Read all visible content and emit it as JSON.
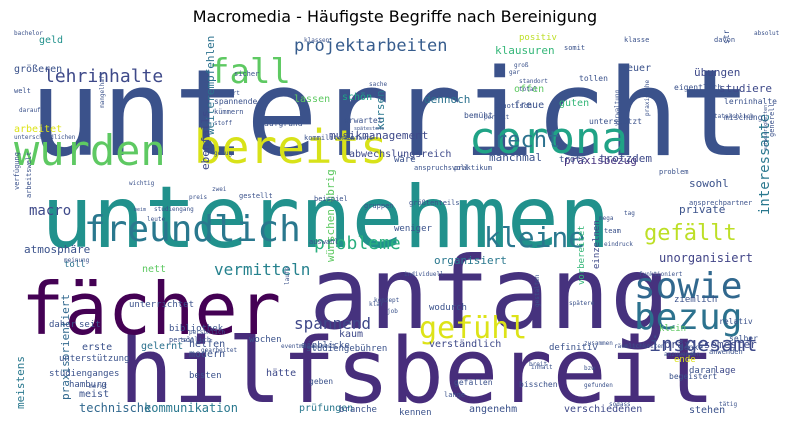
{
  "chart_data": {
    "type": "wordcloud",
    "title": "Macromedia - Häufigste Begriffe nach Bereinigung",
    "words": [
      {
        "text": "unterricht",
        "color": "#3b528b"
      },
      {
        "text": "unternehmen",
        "color": "#21918c"
      },
      {
        "text": "anfang",
        "color": "#46327e"
      },
      {
        "text": "hilfsbereit",
        "color": "#472d7b"
      },
      {
        "text": "fächer",
        "color": "#440154"
      },
      {
        "text": "bereits",
        "color": "#d8e219"
      },
      {
        "text": "wurden",
        "color": "#5ec962"
      },
      {
        "text": "corona",
        "color": "#20a386"
      },
      {
        "text": "freundlich",
        "color": "#2a788e"
      },
      {
        "text": "fall",
        "color": "#5ec962"
      },
      {
        "text": "sowie",
        "color": "#31688e"
      },
      {
        "text": "bezug",
        "color": "#2c728e"
      },
      {
        "text": "gefühl",
        "color": "#dde318"
      },
      {
        "text": "kleine",
        "color": "#2a788e"
      },
      {
        "text": "gefällt",
        "color": "#bddf26"
      },
      {
        "text": "lehrinhalte",
        "color": "#3e4989"
      },
      {
        "text": "projektarbeiten",
        "color": "#365c8d"
      },
      {
        "text": "recht",
        "color": "#2c728e"
      },
      {
        "text": "insgesamt",
        "color": "#3e4989"
      },
      {
        "text": "probleme",
        "color": "#29af7f"
      },
      {
        "text": "vermitteln",
        "color": "#26828e"
      },
      {
        "text": "spannend",
        "color": "#3f4889"
      },
      {
        "text": "interessante",
        "color": "#2a788e"
      },
      {
        "text": "technische",
        "color": "#31688e"
      },
      {
        "text": "kommunikation",
        "color": "#2a788e"
      },
      {
        "text": "macro",
        "color": "#3e4989"
      },
      {
        "text": "unorganisiert",
        "color": "#414487"
      },
      {
        "text": "musikmanagement",
        "color": "#3e4989"
      },
      {
        "text": "manchmal",
        "color": "#3b528b"
      },
      {
        "text": "praxisbezug",
        "color": "#46337f"
      },
      {
        "text": "trotzdem",
        "color": "#3e4989"
      },
      {
        "text": "praxissemester",
        "color": "#3e4989"
      },
      {
        "text": "dennoch",
        "color": "#2c728e"
      },
      {
        "text": "kursen",
        "color": "#2a788e"
      },
      {
        "text": "klausuren",
        "color": "#35b779"
      },
      {
        "text": "übungen",
        "color": "#3e4989"
      },
      {
        "text": "studiere",
        "color": "#3e4989"
      },
      {
        "text": "sowohl",
        "color": "#3b528b"
      },
      {
        "text": "privatе",
        "color": "#3b528b"
      },
      {
        "text": "organisiert",
        "color": "#2a788e"
      },
      {
        "text": "atmosphäre",
        "color": "#3b528b"
      },
      {
        "text": "meistens",
        "color": "#2a788e"
      },
      {
        "text": "praxisorientiert",
        "color": "#31688e"
      },
      {
        "text": "weiterempfehlen",
        "color": "#2c728e"
      },
      {
        "text": "prüfungen",
        "color": "#2a788e"
      },
      {
        "text": "angenehm",
        "color": "#3b528b"
      },
      {
        "text": "verschiedenen",
        "color": "#3e4989"
      },
      {
        "text": "stehen",
        "color": "#3b528b"
      },
      {
        "text": "verständlich",
        "color": "#3e4989"
      },
      {
        "text": "abwechslungsreich",
        "color": "#3e4989"
      },
      {
        "text": "teuer",
        "color": "#3b528b"
      },
      {
        "text": "positiv",
        "color": "#bddf26"
      },
      {
        "text": "ebenfalls",
        "color": "#3e4989"
      },
      {
        "text": "wünschen übrig",
        "color": "#5ec962"
      },
      {
        "text": "arbeitet",
        "color": "#dde318"
      },
      {
        "text": "gelernt",
        "color": "#2c728e"
      },
      {
        "text": "erste",
        "color": "#3b528b"
      },
      {
        "text": "kaum",
        "color": "#3e4989"
      },
      {
        "text": "meist",
        "color": "#3b528b"
      },
      {
        "text": "hätte",
        "color": "#3e4989"
      },
      {
        "text": "größeren",
        "color": "#3b528b"
      },
      {
        "text": "geld",
        "color": "#21918c"
      },
      {
        "text": "schön",
        "color": "#20a386"
      },
      {
        "text": "offen",
        "color": "#5ec962"
      },
      {
        "text": "freue",
        "color": "#3b528b"
      },
      {
        "text": "guten",
        "color": "#35b779"
      },
      {
        "text": "lassen",
        "color": "#5ec962"
      },
      {
        "text": "wäre",
        "color": "#3b528b"
      },
      {
        "text": "nett",
        "color": "#5ec962"
      },
      {
        "text": "toll",
        "color": "#2c728e"
      },
      {
        "text": "helfen",
        "color": "#3b528b"
      },
      {
        "text": "modern",
        "color": "#3b528b"
      },
      {
        "text": "besten",
        "color": "#3b528b"
      },
      {
        "text": "wochen",
        "color": "#3b528b"
      },
      {
        "text": "kennen",
        "color": "#3b528b"
      },
      {
        "text": "klein",
        "color": "#5ec962"
      },
      {
        "text": "ziemlich",
        "color": "#3b528b"
      },
      {
        "text": "ende",
        "color": "#dde318"
      },
      {
        "text": "daran",
        "color": "#3b528b"
      },
      {
        "text": "lage",
        "color": "#3e4989"
      },
      {
        "text": "einzelnen",
        "color": "#3e4989"
      },
      {
        "text": "vorbereitet",
        "color": "#35b779"
      },
      {
        "text": "definitiv",
        "color": "#3b528b"
      },
      {
        "text": "trotz",
        "color": "#3b528b"
      },
      {
        "text": "branche",
        "color": "#3b528b"
      },
      {
        "text": "einblicke",
        "color": "#3b528b"
      },
      {
        "text": "bibliothek",
        "color": "#3b528b"
      },
      {
        "text": "studiengebühren",
        "color": "#3b528b"
      },
      {
        "text": "unterrichtet",
        "color": "#3b528b"
      },
      {
        "text": "wodurch",
        "color": "#3b528b"
      },
      {
        "text": "daher",
        "color": "#3b528b"
      },
      {
        "text": "seit",
        "color": "#3b528b"
      },
      {
        "text": "unterstützung",
        "color": "#3b528b"
      },
      {
        "text": "weniger",
        "color": "#3b528b"
      },
      {
        "text": "welt",
        "color": "#3b528b"
      },
      {
        "text": "leute",
        "color": "#3b528b"
      },
      {
        "text": "studienganges",
        "color": "#3b528b"
      },
      {
        "text": "hamburg",
        "color": "#3b528b"
      },
      {
        "text": "geben",
        "color": "#3b528b"
      },
      {
        "text": "lange",
        "color": "#3b528b"
      },
      {
        "text": "bisschen",
        "color": "#3b528b"
      },
      {
        "text": "gefallen",
        "color": "#3b528b"
      },
      {
        "text": "begeistert",
        "color": "#3b528b"
      },
      {
        "text": "denke",
        "color": "#3b528b"
      },
      {
        "text": "selber",
        "color": "#3b528b"
      },
      {
        "text": "relativ",
        "color": "#3b528b"
      },
      {
        "text": "anwenden",
        "color": "#3b528b"
      },
      {
        "text": "eigentlich",
        "color": "#3b528b"
      },
      {
        "text": "lerninhalte",
        "color": "#3b528b"
      },
      {
        "text": "mischung",
        "color": "#3b528b"
      },
      {
        "text": "tollen",
        "color": "#3b528b"
      },
      {
        "text": "chaotisch",
        "color": "#3b528b"
      },
      {
        "text": "bemüht",
        "color": "#3b528b"
      },
      {
        "text": "spannende",
        "color": "#3b528b"
      },
      {
        "text": "kümmern",
        "color": "#3b528b"
      },
      {
        "text": "sicher",
        "color": "#3b528b"
      },
      {
        "text": "erwartet",
        "color": "#3b528b"
      },
      {
        "text": "aufgrund",
        "color": "#3b528b"
      },
      {
        "text": "unterstützt",
        "color": "#3b528b"
      },
      {
        "text": "strukturiert",
        "color": "#3b528b"
      },
      {
        "text": "davon",
        "color": "#3b528b"
      },
      {
        "text": "klasse",
        "color": "#3b528b"
      },
      {
        "text": "somit",
        "color": "#3b528b"
      },
      {
        "text": "problem",
        "color": "#3b528b"
      },
      {
        "text": "ansprechpartner",
        "color": "#3b528b"
      },
      {
        "text": "generell",
        "color": "#3b528b"
      },
      {
        "text": "kommilitonen",
        "color": "#3b528b"
      },
      {
        "text": "anspruchsvoll",
        "color": "#3b528b"
      },
      {
        "text": "praktikum",
        "color": "#3b528b"
      },
      {
        "text": "gruppen",
        "color": "#3b528b"
      },
      {
        "text": "größtenteils",
        "color": "#3b528b"
      },
      {
        "text": "gestellt",
        "color": "#3b528b"
      },
      {
        "text": "beispiel",
        "color": "#3b528b"
      },
      {
        "text": "verfügung",
        "color": "#3b528b"
      },
      {
        "text": "arbeitswelt",
        "color": "#3b528b"
      },
      {
        "text": "meinung",
        "color": "#3b528b"
      },
      {
        "text": "auswahl",
        "color": "#3b528b"
      },
      {
        "text": "team",
        "color": "#3b528b"
      },
      {
        "text": "tag",
        "color": "#3b528b"
      },
      {
        "text": "mega",
        "color": "#3b528b"
      },
      {
        "text": "eindruck",
        "color": "#3b528b"
      },
      {
        "text": "funktioniert",
        "color": "#3b528b"
      },
      {
        "text": "individuell",
        "color": "#3b528b"
      },
      {
        "text": "laufe",
        "color": "#3b528b"
      },
      {
        "text": "konzept",
        "color": "#3b528b"
      },
      {
        "text": "klar",
        "color": "#3b528b"
      },
      {
        "text": "job",
        "color": "#3b528b"
      },
      {
        "text": "gestalten",
        "color": "#3b528b"
      },
      {
        "text": "spätere",
        "color": "#3b528b"
      },
      {
        "text": "teil",
        "color": "#3b528b"
      },
      {
        "text": "eventmanagement",
        "color": "#3b528b"
      },
      {
        "text": "persönlich",
        "color": "#3b528b"
      },
      {
        "text": "gearbeitet",
        "color": "#3b528b"
      },
      {
        "text": "merkt",
        "color": "#3b528b"
      },
      {
        "text": "inhalt",
        "color": "#3b528b"
      },
      {
        "text": "breit",
        "color": "#3b528b"
      },
      {
        "text": "bzw",
        "color": "#3b528b"
      },
      {
        "text": "gefunden",
        "color": "#3b528b"
      },
      {
        "text": "sodass",
        "color": "#3b528b"
      },
      {
        "text": "tätig",
        "color": "#3b528b"
      },
      {
        "text": "zusammen",
        "color": "#3b528b"
      },
      {
        "text": "räumlichkeiten",
        "color": "#3b528b"
      },
      {
        "text": "anzuwenden",
        "color": "#3b528b"
      },
      {
        "text": "bachelor",
        "color": "#3b528b"
      },
      {
        "text": "persönlich",
        "color": "#3b528b"
      },
      {
        "text": "darauf",
        "color": "#3b528b"
      },
      {
        "text": "mangelhaft",
        "color": "#3b528b"
      },
      {
        "text": "ort",
        "color": "#3b528b"
      },
      {
        "text": "sache",
        "color": "#3b528b"
      },
      {
        "text": "gar",
        "color": "#3b528b"
      },
      {
        "text": "groß",
        "color": "#3b528b"
      },
      {
        "text": "standort",
        "color": "#3b528b"
      },
      {
        "text": "total",
        "color": "#3b528b"
      },
      {
        "text": "stoff",
        "color": "#3b528b"
      },
      {
        "text": "perfekt",
        "color": "#3b528b"
      },
      {
        "text": "verwaltung",
        "color": "#3b528b"
      },
      {
        "text": "praxisnahe",
        "color": "#3b528b"
      },
      {
        "text": "absolut",
        "color": "#3b528b"
      },
      {
        "text": "schwierigkeiten",
        "color": "#3b528b"
      },
      {
        "text": "tatsächlich",
        "color": "#3b528b"
      },
      {
        "text": "genug",
        "color": "#3b528b"
      },
      {
        "text": "wichtig",
        "color": "#3b528b"
      },
      {
        "text": "zwei",
        "color": "#3b528b"
      },
      {
        "text": "preis",
        "color": "#3b528b"
      },
      {
        "text": "beim",
        "color": "#3b528b"
      },
      {
        "text": "studiengang",
        "color": "#3b528b"
      },
      {
        "text": "kontakte",
        "color": "#3b528b"
      },
      {
        "text": "klassen",
        "color": "#3b528b"
      },
      {
        "text": "spätestens",
        "color": "#3b528b"
      },
      {
        "text": "unterschiedlichen",
        "color": "#3b528b"
      }
    ]
  }
}
